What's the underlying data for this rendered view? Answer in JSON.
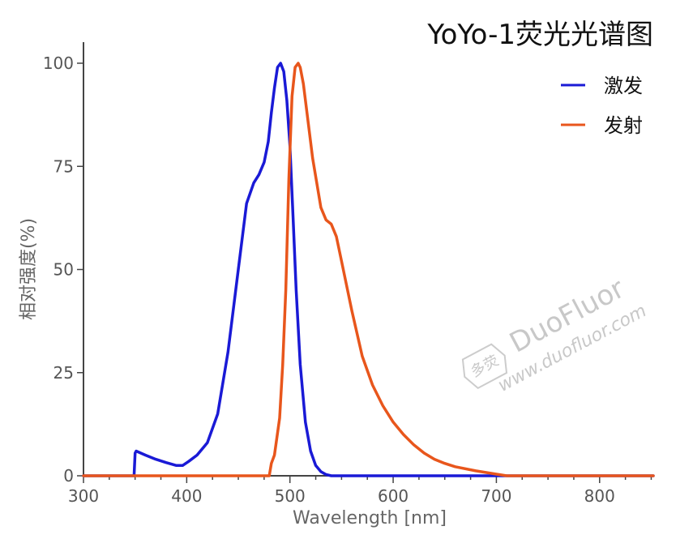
{
  "chart_data": {
    "type": "line",
    "title": "YoYo-1荧光光谱图",
    "xlabel": "Wavelength [nm]",
    "ylabel": "相对强度(%)",
    "xlim": [
      300,
      852
    ],
    "ylim": [
      0,
      100
    ],
    "xticks": [
      300,
      400,
      500,
      600,
      700,
      800
    ],
    "yticks": [
      0,
      25,
      50,
      75,
      100
    ],
    "grid": false,
    "legend_position": "top-right",
    "series": [
      {
        "name": "激发",
        "color": "#1a1ad6",
        "x": [
          300,
          349,
          350,
          351,
          360,
          370,
          380,
          390,
          396,
          402,
          410,
          420,
          430,
          440,
          450,
          458,
          465,
          470,
          475,
          479,
          482,
          485,
          488,
          491,
          494,
          497,
          500,
          503,
          506,
          510,
          515,
          520,
          525,
          530,
          535,
          540,
          560,
          600,
          700,
          852
        ],
        "y": [
          0,
          0,
          5.5,
          6,
          5,
          4,
          3.2,
          2.5,
          2.5,
          3.5,
          5,
          8,
          15,
          30,
          50,
          66,
          71,
          73,
          76,
          81,
          88,
          94,
          99,
          100,
          98,
          91,
          80,
          63,
          45,
          27,
          13,
          6,
          2.5,
          1,
          0.3,
          0,
          0,
          0,
          0,
          0
        ]
      },
      {
        "name": "发射",
        "color": "#e8561c",
        "x": [
          300,
          480,
          482,
          485,
          490,
          493,
          496,
          499,
          502,
          505,
          508,
          510,
          513,
          516,
          519,
          522,
          526,
          530,
          535,
          540,
          545,
          550,
          560,
          570,
          580,
          590,
          600,
          610,
          620,
          630,
          640,
          650,
          660,
          680,
          700,
          710,
          852
        ],
        "y": [
          0,
          0,
          3,
          5,
          14,
          27,
          45,
          72,
          92,
          99,
          100,
          99,
          95,
          89,
          83,
          77,
          71,
          65,
          62,
          61,
          58,
          52,
          40,
          29,
          22,
          17,
          13,
          10,
          7.5,
          5.5,
          4,
          3,
          2.2,
          1.2,
          0.4,
          0,
          0
        ]
      }
    ]
  },
  "watermark": {
    "brand": "DuoFluor",
    "url": "www.duofluor.com",
    "logo_text": "多荧"
  }
}
